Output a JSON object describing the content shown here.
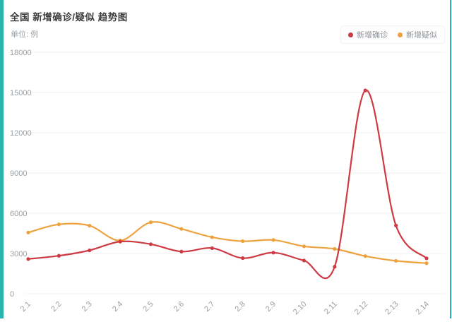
{
  "card": {
    "title": "全国 新增确诊/疑似 趋势图",
    "unit_label": "单位: 例",
    "accent_color": "#2ab5ad"
  },
  "legend": [
    {
      "label": "新增确诊",
      "color": "#ce3a43"
    },
    {
      "label": "新增疑似",
      "color": "#eda23d"
    }
  ],
  "chart_data": {
    "type": "line",
    "title": "全国 新增确诊/疑似 趋势图",
    "ylabel": "单位: 例",
    "x": [
      "2.1",
      "2.2",
      "2.3",
      "2.4",
      "2.5",
      "2.6",
      "2.7",
      "2.8",
      "2.9",
      "2.10",
      "2.11",
      "2.12",
      "2.13",
      "2.14"
    ],
    "series": [
      {
        "name": "新增确诊",
        "color": "#ce3a43",
        "values": [
          2590,
          2829,
          3235,
          3887,
          3694,
          3143,
          3399,
          2656,
          3062,
          2478,
          2015,
          15152,
          5090,
          2641
        ]
      },
      {
        "name": "新增疑似",
        "color": "#eda23d",
        "values": [
          4562,
          5173,
          5072,
          3971,
          5328,
          4833,
          4214,
          3916,
          4008,
          3536,
          3342,
          2807,
          2450,
          2277
        ]
      }
    ],
    "ylim": [
      0,
      18000
    ],
    "y_ticks": [
      0,
      3000,
      6000,
      9000,
      12000,
      15000,
      18000
    ],
    "grid": true,
    "grid_color": "#f0f0f0",
    "axis_text_color": "#9aa0a6",
    "x_label_rotation": 45,
    "smooth": true,
    "legend_position": "top-right"
  }
}
